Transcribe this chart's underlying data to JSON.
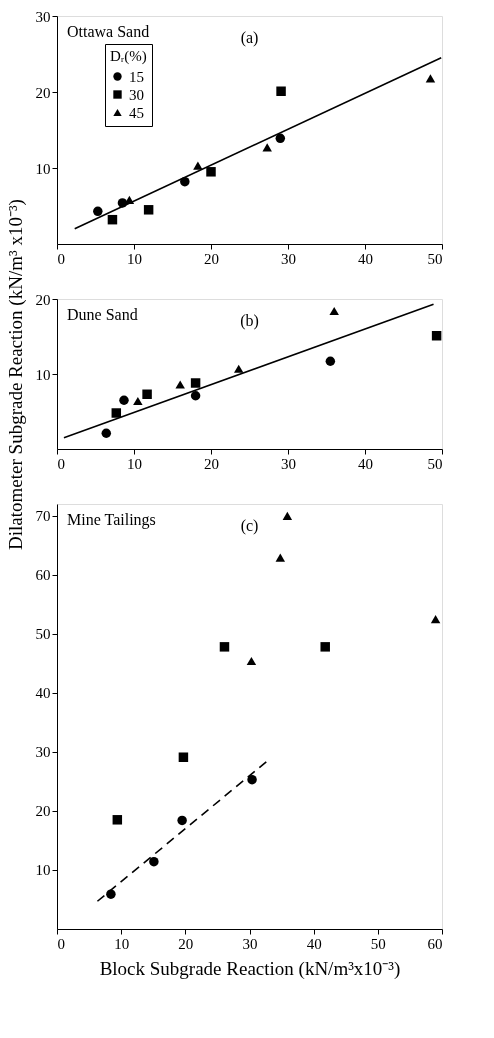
{
  "chart_data": [
    {
      "type": "scatter",
      "annotations": [
        "Ottawa Sand",
        "(a)"
      ],
      "legend": "top left",
      "legend_title": "Dᵣ(%)",
      "xlim": [
        0,
        50
      ],
      "ylim": [
        0,
        30
      ],
      "xticks": [
        0,
        10,
        20,
        30,
        40,
        50
      ],
      "yticks": [
        10,
        20,
        30
      ],
      "grid": false,
      "series": [
        {
          "name": "15",
          "marker": "circle",
          "color": "#000000",
          "x": [
            5.3,
            8.5,
            16.6,
            29.0
          ],
          "values": [
            4.3,
            5.4,
            8.2,
            13.9
          ]
        },
        {
          "name": "30",
          "marker": "square",
          "color": "#000000",
          "x": [
            7.2,
            11.9,
            20.0,
            29.1
          ],
          "values": [
            3.2,
            4.5,
            9.5,
            20.1
          ]
        },
        {
          "name": "45",
          "marker": "triangle",
          "color": "#000000",
          "x": [
            9.4,
            18.3,
            27.3,
            48.5
          ],
          "values": [
            5.8,
            10.3,
            12.7,
            21.8
          ]
        },
        {
          "type": "line",
          "marker": "none",
          "line_style": "solid",
          "color": "#000000",
          "x": [
            2.3,
            49.9
          ],
          "values": [
            2.0,
            24.5
          ]
        }
      ]
    },
    {
      "type": "scatter",
      "annotations": [
        "Dune Sand",
        "(b)"
      ],
      "ylabel": "Dilatometer Subgrade Reaction (kN/m³ x10⁻³)",
      "xlim": [
        0,
        50
      ],
      "ylim": [
        0,
        20
      ],
      "xticks": [
        0,
        10,
        20,
        30,
        40,
        50
      ],
      "yticks": [
        10,
        20
      ],
      "grid": false,
      "series": [
        {
          "marker": "circle",
          "color": "#000000",
          "x": [
            6.4,
            8.7,
            18.0,
            35.5
          ],
          "values": [
            2.1,
            6.5,
            7.1,
            11.7
          ]
        },
        {
          "marker": "square",
          "color": "#000000",
          "x": [
            7.7,
            11.7,
            18.0,
            49.3
          ],
          "values": [
            4.8,
            7.3,
            8.8,
            15.1
          ]
        },
        {
          "marker": "triangle",
          "color": "#000000",
          "x": [
            10.5,
            16.0,
            23.6,
            36.0
          ],
          "values": [
            6.4,
            8.6,
            10.7,
            18.4
          ]
        },
        {
          "type": "line",
          "marker": "none",
          "line_style": "solid",
          "color": "#000000",
          "x": [
            0.9,
            48.9
          ],
          "values": [
            1.5,
            19.3
          ]
        }
      ]
    },
    {
      "type": "scatter",
      "annotations": [
        "Mine Tailings",
        "(c)"
      ],
      "xlabel": "Block Subgrade Reaction (kN/m³x10⁻³)",
      "xlim": [
        0,
        60
      ],
      "ylim": [
        0,
        72
      ],
      "xticks": [
        0,
        10,
        20,
        30,
        40,
        50,
        60
      ],
      "yticks": [
        10,
        20,
        30,
        40,
        50,
        60,
        70
      ],
      "grid": false,
      "series": [
        {
          "marker": "circle",
          "color": "#000000",
          "x": [
            8.4,
            15.1,
            19.5,
            30.4
          ],
          "values": [
            5.9,
            11.4,
            18.4,
            25.3
          ]
        },
        {
          "marker": "square",
          "color": "#000000",
          "x": [
            9.4,
            19.7,
            26.1,
            41.8
          ],
          "values": [
            18.5,
            29.1,
            47.8,
            47.8
          ]
        },
        {
          "marker": "triangle",
          "color": "#000000",
          "x": [
            30.3,
            34.8,
            35.9,
            59.0
          ],
          "values": [
            45.4,
            62.9,
            70.0,
            52.5
          ]
        },
        {
          "type": "line",
          "marker": "none",
          "line_style": "dashed",
          "color": "#000000",
          "x": [
            6.3,
            32.7
          ],
          "values": [
            4.7,
            28.4
          ]
        }
      ]
    }
  ]
}
